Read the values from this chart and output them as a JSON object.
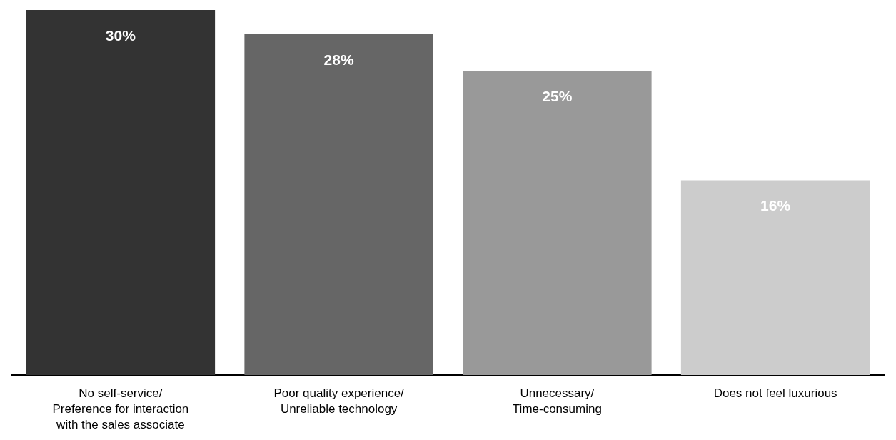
{
  "chart_data": {
    "type": "bar",
    "categories": [
      "No self-service/\nPreference for interaction\nwith the sales associate",
      "Poor quality experience/\nUnreliable technology",
      "Unnecessary/\nTime-consuming",
      "Does not feel luxurious"
    ],
    "values": [
      30,
      28,
      25,
      16
    ],
    "value_labels": [
      "30%",
      "28%",
      "25%",
      "16%"
    ],
    "colors": [
      "#333333",
      "#666666",
      "#999999",
      "#cccccc"
    ]
  }
}
